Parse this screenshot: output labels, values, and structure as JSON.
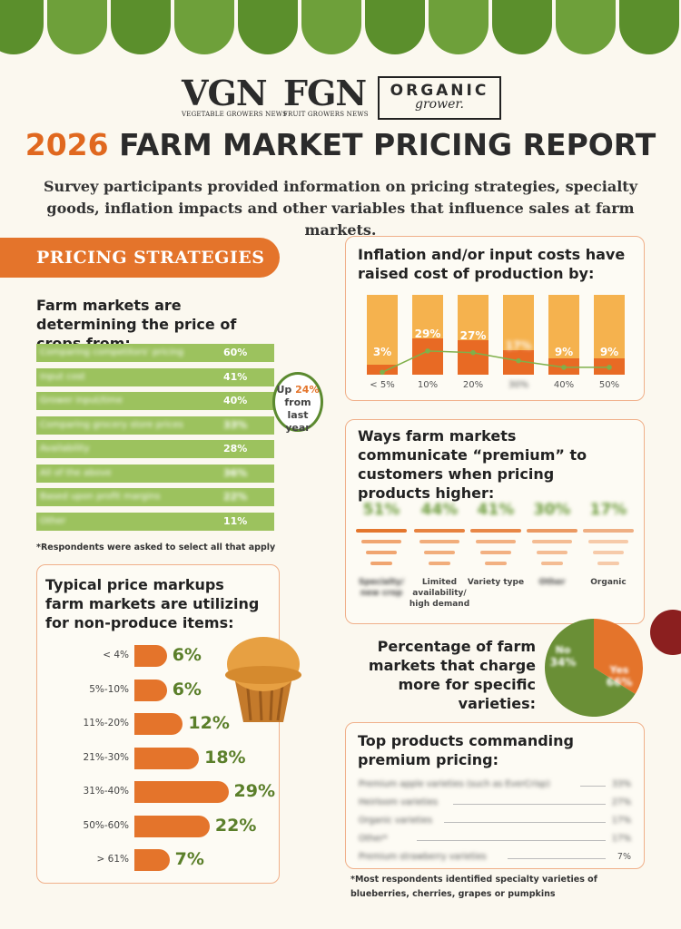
{
  "logos": {
    "vgn": {
      "big": "VGN",
      "small": "VEGETABLE GROWERS NEWS"
    },
    "fgn": {
      "big": "FGN",
      "small": "FRUIT GROWERS NEWS"
    },
    "organic": {
      "big": "ORGANIC",
      "small": "grower."
    }
  },
  "title": {
    "year": "2026",
    "rest": "FARM MARKET PRICING REPORT"
  },
  "subtitle": "Survey participants provided information on pricing strategies, specialty goods, inflation impacts and other variables that influence sales at farm markets.",
  "pricing": {
    "banner": "PRICING STRATEGIES",
    "heading": "Farm markets are determining the price of crops from:",
    "note": "*Respondents were asked to select all that apply",
    "badge": {
      "up": "Up",
      "pct": "24%",
      "rest1": "from last",
      "rest2": "year"
    }
  },
  "markups": {
    "heading": "Typical price markups farm markets are utilizing for non-produce items:"
  },
  "inflation": {
    "heading": "Inflation and/or input costs have raised cost of production by:"
  },
  "communicate": {
    "heading": "Ways farm markets communicate “premium” to customers when pricing products higher:"
  },
  "varieties": {
    "heading": "Percentage of farm markets that charge more for specific varieties:"
  },
  "top_products": {
    "heading": "Top products commanding premium pricing:",
    "note": "*Most respondents identified specialty varieties of blueberries, cherries, grapes or pumpkins"
  },
  "colors": {
    "orange": "#e4742b",
    "green": "#5b8a2f",
    "lightgreen": "#9cc25e",
    "yellow": "#f5b24e"
  },
  "chart_data": [
    {
      "type": "bar",
      "title": "Farm markets are determining the price of crops from:",
      "categories": [
        "Comparing competitors' pricing",
        "Input cost",
        "Grower input/time",
        "Comparing grocery store prices",
        "Availability",
        "All of the above",
        "Based upon profit margins",
        "Other"
      ],
      "values": [
        60,
        41,
        40,
        33,
        28,
        36,
        22,
        11
      ],
      "units": "%"
    },
    {
      "type": "bar",
      "title": "Typical price markups farm markets are utilizing for non-produce items:",
      "categories": [
        "< 4%",
        "5%-10%",
        "11%-20%",
        "21%-30%",
        "31%-40%",
        "50%-60%",
        "> 61%"
      ],
      "values": [
        6,
        6,
        12,
        18,
        29,
        22,
        7
      ],
      "units": "%"
    },
    {
      "type": "bar",
      "title": "Inflation and/or input costs have raised cost of production by:",
      "categories": [
        "< 5%",
        "10%",
        "20%",
        "30%",
        "40%",
        "50%"
      ],
      "values": [
        3,
        29,
        27,
        17,
        9,
        9
      ],
      "units": "%"
    },
    {
      "type": "bar",
      "title": "Ways farm markets communicate “premium” to customers when pricing products higher:",
      "categories": [
        "Specialty/ new crop",
        "Limited availability/ high demand",
        "Variety type",
        "Other",
        "Organic"
      ],
      "values": [
        51,
        44,
        41,
        30,
        17
      ],
      "units": "%"
    },
    {
      "type": "pie",
      "title": "Percentage of farm markets that charge more for specific varieties:",
      "categories": [
        "No",
        "Yes"
      ],
      "values": [
        34,
        66
      ],
      "units": "%"
    },
    {
      "type": "table",
      "title": "Top products commanding premium pricing:",
      "categories": [
        "Premium apple varieties (such as EverCrisp)",
        "Heirloom varieties",
        "Organic varieties",
        "Other*",
        "Premium strawberry varieties"
      ],
      "values": [
        33,
        27,
        17,
        17,
        7
      ],
      "units": "%"
    }
  ]
}
